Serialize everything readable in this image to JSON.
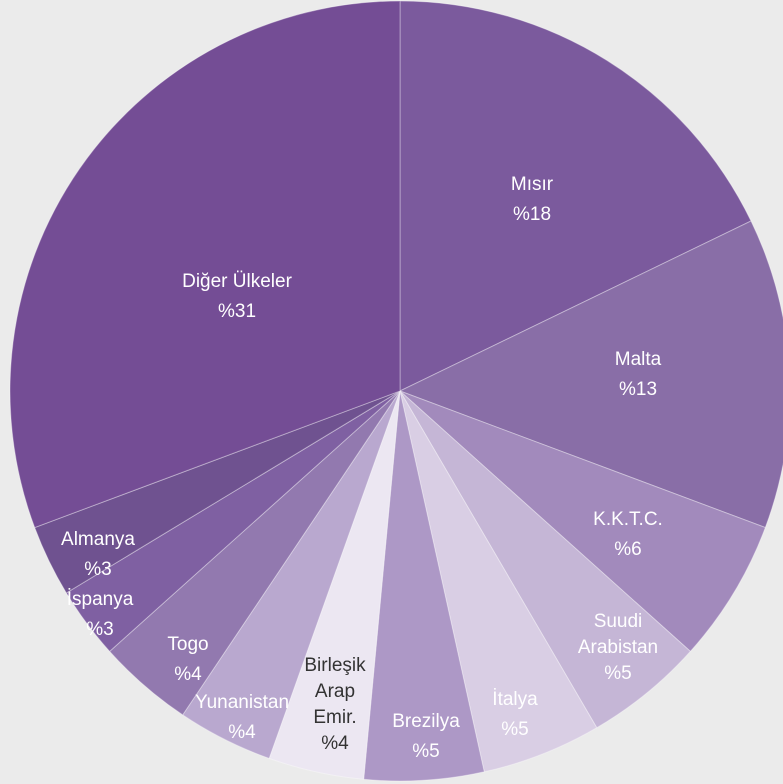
{
  "chart_data": {
    "type": "pie",
    "categories": [
      "Mısır",
      "Malta",
      "K.K.T.C.",
      "Suudi Arabistan",
      "İtalya",
      "Brezilya",
      "Birleşik Arap Emir.",
      "Yunanistan",
      "Togo",
      "İspanya",
      "Almanya",
      "Diğer Ülkeler"
    ],
    "values": [
      18,
      13,
      6,
      5,
      5,
      5,
      4,
      4,
      4,
      3,
      3,
      31
    ],
    "value_labels": [
      "%18",
      "%13",
      "%6",
      "%5",
      "%5",
      "%5",
      "%4",
      "%4",
      "%4",
      "%3",
      "%3",
      "%31"
    ],
    "colors": [
      "#7b5a9d",
      "#896ea7",
      "#a28abc",
      "#c5b6d6",
      "#d9cee4",
      "#ad98c6",
      "#ece7f2",
      "#b9a8cf",
      "#9279af",
      "#7f60a2",
      "#6f5290",
      "#744d95"
    ]
  }
}
